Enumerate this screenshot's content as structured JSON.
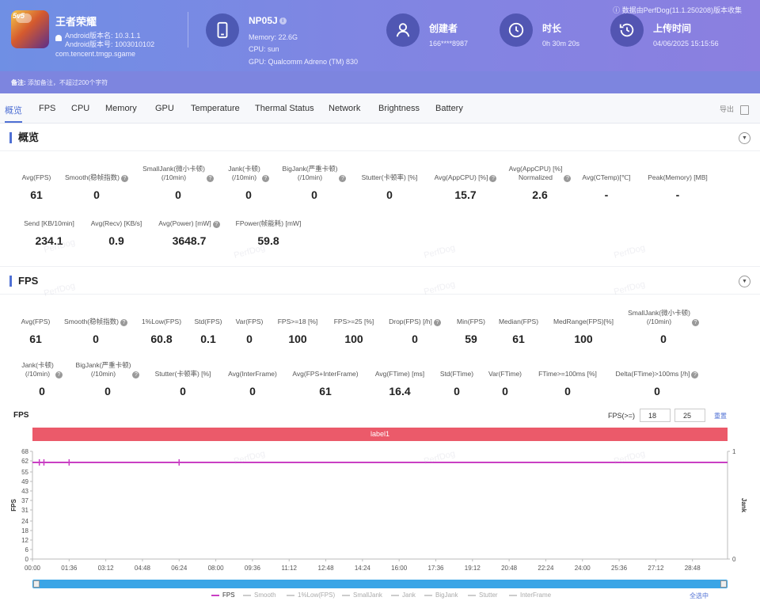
{
  "header": {
    "app_name": "王者荣耀",
    "app_icon_badge": "5v5",
    "android_version": "Android版本名: 10.3.1.1",
    "android_code": "Android版本号: 1003010102",
    "package": "com.tencent.tmgp.sgame",
    "device_name": "NP05J",
    "device_memory": "Memory: 22.6G",
    "device_cpu": "CPU: sun",
    "device_gpu": "GPU: Qualcomm Adreno (TM) 830",
    "creator_title": "创建者",
    "creator_value": "166****8987",
    "duration_title": "时长",
    "duration_value": "0h 30m 20s",
    "upload_title": "上传时间",
    "upload_value": "04/06/2025 15:15:56",
    "data_source": "ⓘ 数据由PerfDog(11.1.250208)版本收集"
  },
  "note": {
    "label": "备注:",
    "placeholder": "添加备注，不超过200个字符"
  },
  "tabs": [
    "概览",
    "FPS",
    "CPU",
    "Memory",
    "GPU",
    "Temperature",
    "Thermal Status",
    "Network",
    "Brightness",
    "Battery"
  ],
  "export_label": "导出",
  "overview": {
    "title": "概览",
    "row1": [
      {
        "label": "Avg(FPS)",
        "value": "61",
        "help": false
      },
      {
        "label": "Smooth(稳帧指数)",
        "value": "0",
        "help": true
      },
      {
        "label": "SmallJank(微小卡顿)\n(/10min)",
        "value": "0",
        "help": true
      },
      {
        "label": "Jank(卡顿)\n(/10min)",
        "value": "0",
        "help": true
      },
      {
        "label": "BigJank(严重卡顿)\n(/10min)",
        "value": "0",
        "help": true
      },
      {
        "label": "Stutter(卡顿率) [%]",
        "value": "0",
        "help": false
      },
      {
        "label": "Avg(AppCPU) [%]",
        "value": "15.7",
        "help": true
      },
      {
        "label": "Avg(AppCPU) [%]\nNormalized",
        "value": "2.6",
        "help": true
      },
      {
        "label": "Avg(CTemp)[℃]",
        "value": "-",
        "help": false
      },
      {
        "label": "Peak(Memory) [MB]",
        "value": "-",
        "help": false
      }
    ],
    "row2": [
      {
        "label": "Send [KB/10min]",
        "value": "234.1",
        "help": false
      },
      {
        "label": "Avg(Recv) [KB/s]",
        "value": "0.9",
        "help": false
      },
      {
        "label": "Avg(Power) [mW]",
        "value": "3648.7",
        "help": true
      },
      {
        "label": "FPower(帧能耗) [mW]",
        "value": "59.8",
        "help": false
      }
    ]
  },
  "fps_section": {
    "title": "FPS",
    "row1": [
      {
        "label": "Avg(FPS)",
        "value": "61",
        "help": false
      },
      {
        "label": "Smooth(稳帧指数)",
        "value": "0",
        "help": true
      },
      {
        "label": "1%Low(FPS)",
        "value": "60.8",
        "help": false
      },
      {
        "label": "Std(FPS)",
        "value": "0.1",
        "help": false
      },
      {
        "label": "Var(FPS)",
        "value": "0",
        "help": false
      },
      {
        "label": "FPS>=18 [%]",
        "value": "100",
        "help": false
      },
      {
        "label": "FPS>=25 [%]",
        "value": "100",
        "help": false
      },
      {
        "label": "Drop(FPS) [/h]",
        "value": "0",
        "help": true
      },
      {
        "label": "Min(FPS)",
        "value": "59",
        "help": false
      },
      {
        "label": "Median(FPS)",
        "value": "61",
        "help": false
      },
      {
        "label": "MedRange(FPS)[%]",
        "value": "100",
        "help": false
      },
      {
        "label": "SmallJank(微小卡顿)\n(/10min)",
        "value": "0",
        "help": true
      }
    ],
    "row2": [
      {
        "label": "Jank(卡顿)\n(/10min)",
        "value": "0",
        "help": true
      },
      {
        "label": "BigJank(严重卡顿)\n(/10min)",
        "value": "0",
        "help": true
      },
      {
        "label": "Stutter(卡顿率) [%]",
        "value": "0",
        "help": false
      },
      {
        "label": "Avg(InterFrame)",
        "value": "0",
        "help": false
      },
      {
        "label": "Avg(FPS+InterFrame)",
        "value": "61",
        "help": false
      },
      {
        "label": "Avg(FTime) [ms]",
        "value": "16.4",
        "help": false
      },
      {
        "label": "Std(FTime)",
        "value": "0",
        "help": false
      },
      {
        "label": "Var(FTime)",
        "value": "0",
        "help": false
      },
      {
        "label": "FTime>=100ms [%]",
        "value": "0",
        "help": false
      },
      {
        "label": "Delta(FTime)>100ms [/h]",
        "value": "0",
        "help": true
      }
    ]
  },
  "chart_controls": {
    "title": "FPS",
    "threshold_label": "FPS(>=)",
    "threshold_1": "18",
    "threshold_2": "25",
    "reset_label": "重置",
    "label_bar": "label1",
    "select_all": "全选中"
  },
  "watermark_text": "PerfDog",
  "chart_data": {
    "type": "line",
    "x_ticks": [
      "00:00",
      "01:36",
      "03:12",
      "04:48",
      "06:24",
      "08:00",
      "09:36",
      "11:12",
      "12:48",
      "14:24",
      "16:00",
      "17:36",
      "19:12",
      "20:48",
      "22:24",
      "24:00",
      "25:36",
      "27:12",
      "28:48"
    ],
    "y_ticks": [
      0,
      6,
      12,
      18,
      24,
      31,
      37,
      43,
      49,
      55,
      62,
      68
    ],
    "y2_ticks": [
      0,
      1
    ],
    "ylabel": "FPS",
    "y2label": "Jank",
    "ylim": [
      0,
      68
    ],
    "x_range_min": [
      0,
      30.33
    ],
    "series": [
      {
        "name": "FPS",
        "color": "#c93fc4",
        "value_constant": 61
      }
    ],
    "markers_min": [
      0.3,
      0.5,
      1.6,
      6.4
    ],
    "legend": [
      "FPS",
      "Smooth",
      "1%Low(FPS)",
      "SmallJank",
      "Jank",
      "BigJank",
      "Stutter",
      "InterFrame"
    ],
    "legend_active": [
      "FPS"
    ]
  }
}
